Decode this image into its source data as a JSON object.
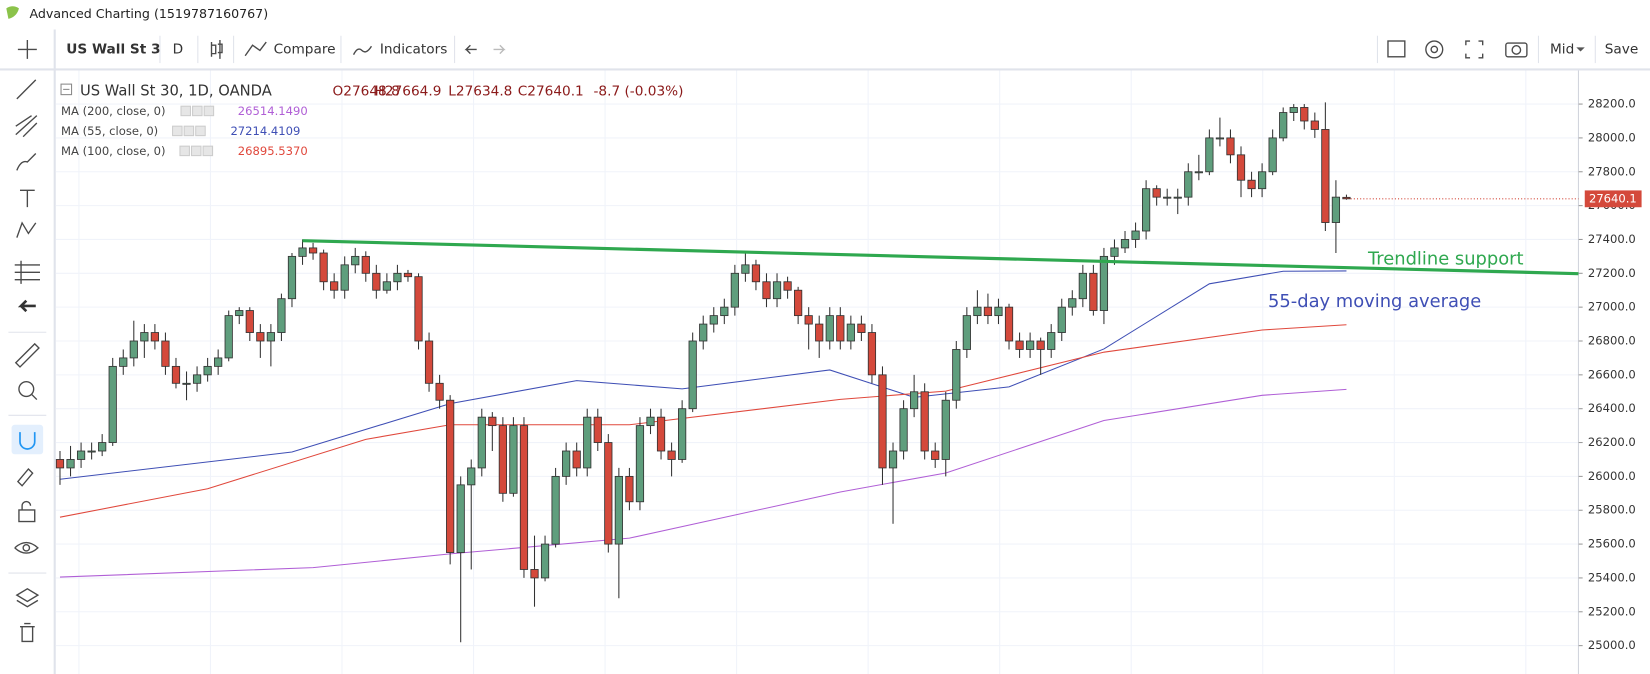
{
  "window_title": "Advanced Charting (1519787160767)",
  "toolbar": {
    "symbol": "US Wall St 3",
    "interval": "D",
    "compare": "Compare",
    "indicators": "Indicators",
    "mode": "Mid",
    "save": "Save"
  },
  "header": {
    "symbol": "US Wall St 30, 1D, OANDA",
    "open": "O27648.8",
    "high": "H27664.9",
    "low": "L27634.8",
    "close": "C27640.1",
    "change": "-8.7 (-0.03%)"
  },
  "chart_data": {
    "type": "candlestick",
    "up_color": "#5f9e7d",
    "down_color": "#d4493b",
    "xlim": [
      -0.4,
      144
    ],
    "ylim": [
      24851,
      28380
    ],
    "yticks": [
      {
        "value": 25000,
        "label": "25000.0"
      },
      {
        "value": 25200,
        "label": "25200.0"
      },
      {
        "value": 25400,
        "label": "25400.0"
      },
      {
        "value": 25600,
        "label": "25600.0"
      },
      {
        "value": 25800,
        "label": "25800.0"
      },
      {
        "value": 26000,
        "label": "26000.0"
      },
      {
        "value": 26200,
        "label": "26200.0"
      },
      {
        "value": 26400,
        "label": "26400.0"
      },
      {
        "value": 26600,
        "label": "26600.0"
      },
      {
        "value": 26800,
        "label": "26800.0"
      },
      {
        "value": 27000,
        "label": "27000.0"
      },
      {
        "value": 27200,
        "label": "27200.0"
      },
      {
        "value": 27400,
        "label": "27400.0"
      },
      {
        "value": 27600,
        "label": "27600.0"
      },
      {
        "value": 27800,
        "label": "27800.0"
      },
      {
        "value": 28000,
        "label": "28000.0"
      },
      {
        "value": 28200,
        "label": "28200.0"
      }
    ],
    "grid": true,
    "candles": [
      [
        26100,
        26150,
        25950,
        26050
      ],
      [
        26050,
        26180,
        26000,
        26100
      ],
      [
        26100,
        26200,
        26050,
        26150
      ],
      [
        26150,
        26200,
        26100,
        26150
      ],
      [
        26150,
        26250,
        26120,
        26200
      ],
      [
        26200,
        26700,
        26180,
        26650
      ],
      [
        26650,
        26750,
        26600,
        26700
      ],
      [
        26700,
        26920,
        26650,
        26800
      ],
      [
        26800,
        26900,
        26700,
        26850
      ],
      [
        26850,
        26900,
        26750,
        26800
      ],
      [
        26800,
        26850,
        26600,
        26650
      ],
      [
        26650,
        26700,
        26520,
        26550
      ],
      [
        26550,
        26620,
        26450,
        26550
      ],
      [
        26550,
        26650,
        26500,
        26600
      ],
      [
        26600,
        26700,
        26560,
        26650
      ],
      [
        26650,
        26750,
        26600,
        26700
      ],
      [
        26700,
        26980,
        26680,
        26950
      ],
      [
        26950,
        27000,
        26900,
        26980
      ],
      [
        26980,
        27000,
        26800,
        26850
      ],
      [
        26850,
        26900,
        26700,
        26800
      ],
      [
        26800,
        26900,
        26650,
        26850
      ],
      [
        26850,
        27080,
        26800,
        27050
      ],
      [
        27050,
        27320,
        27000,
        27300
      ],
      [
        27300,
        27400,
        27250,
        27350
      ],
      [
        27350,
        27380,
        27280,
        27320
      ],
      [
        27320,
        27340,
        27100,
        27150
      ],
      [
        27150,
        27200,
        27050,
        27100
      ],
      [
        27100,
        27300,
        27050,
        27250
      ],
      [
        27250,
        27350,
        27200,
        27300
      ],
      [
        27300,
        27330,
        27150,
        27200
      ],
      [
        27200,
        27250,
        27050,
        27100
      ],
      [
        27100,
        27200,
        27080,
        27150
      ],
      [
        27150,
        27250,
        27100,
        27200
      ],
      [
        27200,
        27220,
        27150,
        27180
      ],
      [
        27180,
        27200,
        26750,
        26800
      ],
      [
        26800,
        26850,
        26500,
        26550
      ],
      [
        26550,
        26600,
        26400,
        26450
      ],
      [
        26450,
        26480,
        25480,
        25550
      ],
      [
        25550,
        26000,
        25020,
        25950
      ],
      [
        25950,
        26100,
        25450,
        26050
      ],
      [
        26050,
        26400,
        26000,
        26350
      ],
      [
        26350,
        26380,
        26150,
        26300
      ],
      [
        26300,
        26350,
        25850,
        25900
      ],
      [
        25900,
        26350,
        25880,
        26300
      ],
      [
        26300,
        26350,
        25400,
        25450
      ],
      [
        25450,
        25650,
        25230,
        25400
      ],
      [
        25400,
        25650,
        25380,
        25600
      ],
      [
        25600,
        26050,
        25580,
        26000
      ],
      [
        26000,
        26200,
        25950,
        26150
      ],
      [
        26150,
        26200,
        26000,
        26050
      ],
      [
        26050,
        26400,
        26000,
        26350
      ],
      [
        26350,
        26400,
        26150,
        26200
      ],
      [
        26200,
        26250,
        25550,
        25600
      ],
      [
        25600,
        26050,
        25280,
        26000
      ],
      [
        26000,
        26050,
        25800,
        25850
      ],
      [
        25850,
        26350,
        25800,
        26300
      ],
      [
        26300,
        26400,
        26250,
        26350
      ],
      [
        26350,
        26400,
        26100,
        26150
      ],
      [
        26150,
        26200,
        26000,
        26100
      ],
      [
        26100,
        26450,
        26080,
        26400
      ],
      [
        26400,
        26850,
        26380,
        26800
      ],
      [
        26800,
        26950,
        26750,
        26900
      ],
      [
        26900,
        27000,
        26850,
        26950
      ],
      [
        26950,
        27050,
        26900,
        27000
      ],
      [
        27000,
        27250,
        26950,
        27200
      ],
      [
        27200,
        27320,
        27150,
        27250
      ],
      [
        27250,
        27280,
        27100,
        27150
      ],
      [
        27150,
        27200,
        27000,
        27050
      ],
      [
        27050,
        27200,
        27000,
        27150
      ],
      [
        27150,
        27180,
        27050,
        27100
      ],
      [
        27100,
        27120,
        26900,
        26950
      ],
      [
        26950,
        27000,
        26750,
        26900
      ],
      [
        26900,
        26950,
        26700,
        26800
      ],
      [
        26800,
        27000,
        26750,
        26950
      ],
      [
        26950,
        27000,
        26750,
        26800
      ],
      [
        26800,
        26950,
        26750,
        26900
      ],
      [
        26900,
        26950,
        26800,
        26850
      ],
      [
        26850,
        26900,
        26550,
        26600
      ],
      [
        26600,
        26650,
        25950,
        26050
      ],
      [
        26050,
        26200,
        25720,
        26150
      ],
      [
        26150,
        26450,
        26100,
        26400
      ],
      [
        26400,
        26600,
        26350,
        26500
      ],
      [
        26500,
        26550,
        26100,
        26150
      ],
      [
        26150,
        26200,
        26050,
        26100
      ],
      [
        26100,
        26500,
        26000,
        26450
      ],
      [
        26450,
        26800,
        26400,
        26750
      ],
      [
        26750,
        27000,
        26700,
        26950
      ],
      [
        26950,
        27100,
        26900,
        27000
      ],
      [
        27000,
        27080,
        26900,
        26950
      ],
      [
        26950,
        27050,
        26900,
        27000
      ],
      [
        27000,
        27020,
        26750,
        26800
      ],
      [
        26800,
        26850,
        26700,
        26750
      ],
      [
        26750,
        26850,
        26700,
        26800
      ],
      [
        26800,
        26820,
        26600,
        26750
      ],
      [
        26750,
        26900,
        26700,
        26850
      ],
      [
        26850,
        27050,
        26800,
        27000
      ],
      [
        27000,
        27100,
        26950,
        27050
      ],
      [
        27050,
        27250,
        27000,
        27200
      ],
      [
        27200,
        27250,
        26950,
        26980
      ],
      [
        26980,
        27350,
        26900,
        27300
      ],
      [
        27300,
        27400,
        27250,
        27350
      ],
      [
        27350,
        27450,
        27320,
        27400
      ],
      [
        27400,
        27500,
        27350,
        27450
      ],
      [
        27450,
        27750,
        27400,
        27700
      ],
      [
        27700,
        27720,
        27600,
        27650
      ],
      [
        27650,
        27700,
        27600,
        27650
      ],
      [
        27650,
        27700,
        27550,
        27650
      ],
      [
        27650,
        27850,
        27600,
        27800
      ],
      [
        27800,
        27900,
        27750,
        27800
      ],
      [
        27800,
        28050,
        27780,
        28000
      ],
      [
        28000,
        28120,
        27950,
        28000
      ],
      [
        28000,
        28050,
        27850,
        27900
      ],
      [
        27900,
        27950,
        27650,
        27750
      ],
      [
        27750,
        27800,
        27650,
        27700
      ],
      [
        27700,
        27850,
        27650,
        27800
      ],
      [
        27800,
        28050,
        27780,
        28000
      ],
      [
        28000,
        28180,
        27980,
        28150
      ],
      [
        28150,
        28200,
        28100,
        28180
      ],
      [
        28180,
        28200,
        28050,
        28100
      ],
      [
        28100,
        28150,
        28000,
        28050
      ],
      [
        28050,
        28210,
        27450,
        27500
      ],
      [
        27500,
        27750,
        27320,
        27650
      ],
      [
        27648.8,
        27664.9,
        27634.8,
        27640.1
      ]
    ],
    "series": [
      {
        "name": "MA (200, close, 0)",
        "legend_value": "26514.1490",
        "color": "#b05fd6",
        "x": [
          0,
          24,
          37,
          54,
          74,
          84,
          99,
          114,
          122
        ],
        "values": [
          25405,
          25461,
          25542,
          25635,
          25908,
          26020,
          26330,
          26479,
          26514
        ]
      },
      {
        "name": "MA (55, close, 0)",
        "legend_value": "27214.4109",
        "color": "#3f4fb5",
        "x": [
          0,
          22,
          37,
          49,
          59,
          73,
          81,
          90,
          99,
          109,
          116,
          122
        ],
        "values": [
          25983,
          26144,
          26430,
          26566,
          26517,
          26629,
          26467,
          26529,
          26753,
          27138,
          27212,
          27214
        ]
      },
      {
        "name": "MA (100, close, 0)",
        "legend_value": "26895.5370",
        "color": "#e0483c",
        "x": [
          0,
          14,
          29,
          37,
          54,
          74,
          84,
          99,
          114,
          122
        ],
        "values": [
          25759,
          25927,
          26219,
          26305,
          26305,
          26455,
          26504,
          26734,
          26865,
          26896
        ]
      }
    ],
    "trendline": {
      "label": "Trendline support",
      "color": "#2fa84f",
      "x": [
        23,
        144
      ],
      "values": [
        27393,
        27198
      ]
    },
    "annotation": {
      "label": "55-day moving average",
      "color": "#3f4fb5"
    }
  }
}
